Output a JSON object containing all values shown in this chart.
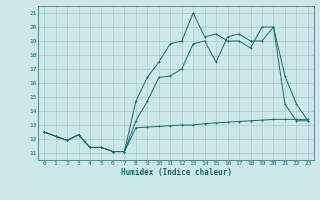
{
  "title": "",
  "xlabel": "Humidex (Indice chaleur)",
  "xlim": [
    -0.5,
    23.5
  ],
  "ylim": [
    10.5,
    21.5
  ],
  "xticks": [
    0,
    1,
    2,
    3,
    4,
    5,
    6,
    7,
    8,
    9,
    10,
    11,
    12,
    13,
    14,
    15,
    16,
    17,
    18,
    19,
    20,
    21,
    22,
    23
  ],
  "yticks": [
    11,
    12,
    13,
    14,
    15,
    16,
    17,
    18,
    19,
    20,
    21
  ],
  "background_color": "#cce8e8",
  "grid_color": "#aacccc",
  "line_color": "#1a6b6b",
  "line1_x": [
    0,
    1,
    2,
    3,
    4,
    5,
    6,
    7,
    8,
    9,
    10,
    11,
    12,
    13,
    14,
    15,
    16,
    17,
    18,
    19,
    20,
    21,
    22,
    23
  ],
  "line1_y": [
    12.5,
    12.2,
    11.9,
    12.3,
    11.4,
    11.4,
    11.1,
    11.1,
    13.3,
    14.7,
    16.4,
    16.5,
    17.0,
    18.8,
    19.0,
    17.5,
    19.3,
    19.5,
    19.0,
    19.0,
    20.0,
    14.5,
    13.3,
    13.3
  ],
  "line2_x": [
    0,
    1,
    2,
    3,
    4,
    5,
    6,
    7,
    8,
    9,
    10,
    11,
    12,
    13,
    14,
    15,
    16,
    17,
    18,
    19,
    20,
    21,
    22,
    23
  ],
  "line2_y": [
    12.5,
    12.2,
    11.9,
    12.3,
    11.4,
    11.4,
    11.1,
    11.1,
    12.8,
    12.85,
    12.9,
    12.95,
    13.0,
    13.0,
    13.1,
    13.15,
    13.2,
    13.25,
    13.3,
    13.35,
    13.4,
    13.4,
    13.4,
    13.4
  ],
  "line3_x": [
    0,
    1,
    2,
    3,
    4,
    5,
    6,
    7,
    8,
    9,
    10,
    11,
    12,
    13,
    14,
    15,
    16,
    17,
    18,
    19,
    20,
    21,
    22,
    23
  ],
  "line3_y": [
    12.5,
    12.2,
    11.9,
    12.3,
    11.4,
    11.4,
    11.1,
    11.1,
    14.7,
    16.4,
    17.5,
    18.8,
    19.0,
    21.0,
    19.3,
    19.5,
    19.0,
    19.0,
    18.5,
    20.0,
    20.0,
    16.5,
    14.5,
    13.3
  ]
}
